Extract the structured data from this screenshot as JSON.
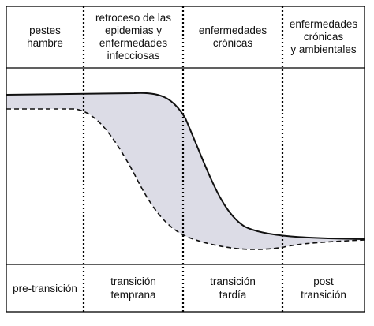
{
  "headers": [
    "pestes\nhambre",
    "retroceso de las\nepidemias y\nenfermedades\ninfecciosas",
    "enfermedades\ncrónicas",
    "enfermedades\ncrónicas\ny ambientales"
  ],
  "footers": [
    "pre-transición",
    "transición\ntemprana",
    "transición\ntardía",
    "post\ntransición"
  ],
  "colors": {
    "border": "#000000",
    "shading": "#dcdce6",
    "curve": "#111111"
  }
}
